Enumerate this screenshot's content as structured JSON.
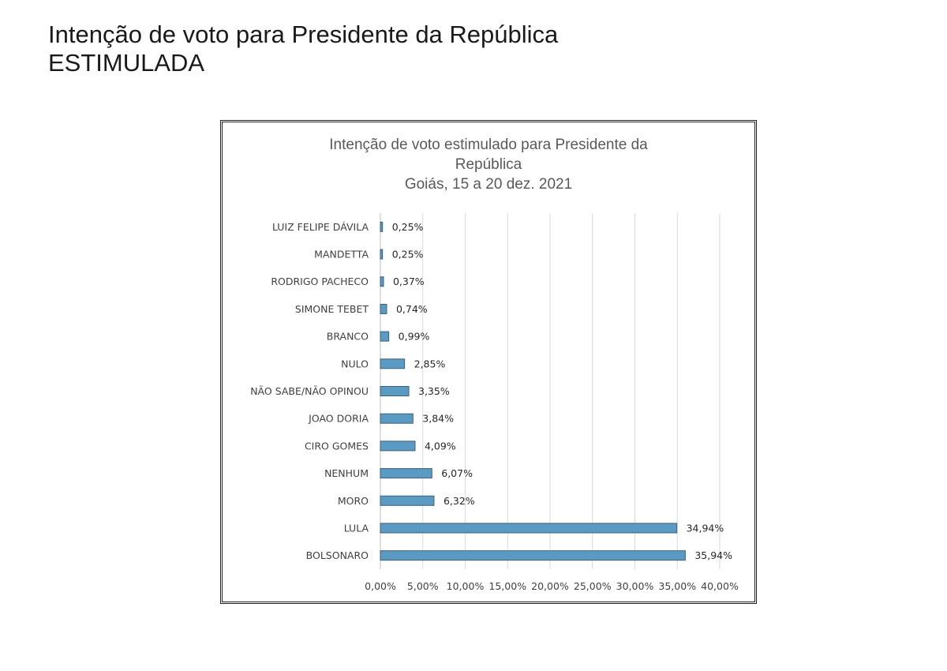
{
  "page": {
    "title_line1": "Intenção de voto para Presidente da República",
    "title_line2": "ESTIMULADA"
  },
  "chart_data": {
    "type": "bar",
    "orientation": "horizontal",
    "title_lines": [
      "Intenção de voto estimulado para Presidente da",
      "República",
      "Goiás, 15 a 20 dez. 2021"
    ],
    "categories": [
      "LUIZ FELIPE DÁVILA",
      "MANDETTA",
      "RODRIGO PACHECO",
      "SIMONE TEBET",
      "BRANCO",
      "NULO",
      "NÃO SABE/NÃO OPINOU",
      "JOAO DORIA",
      "CIRO GOMES",
      "NENHUM",
      "MORO",
      "LULA",
      "BOLSONARO"
    ],
    "values": [
      0.25,
      0.25,
      0.37,
      0.74,
      0.99,
      2.85,
      3.35,
      3.84,
      4.09,
      6.07,
      6.32,
      34.94,
      35.94
    ],
    "value_labels": [
      "0,25%",
      "0,25%",
      "0,37%",
      "0,74%",
      "0,99%",
      "2,85%",
      "3,35%",
      "3,84%",
      "4,09%",
      "6,07%",
      "6,32%",
      "34,94%",
      "35,94%"
    ],
    "x_ticks": [
      0,
      5,
      10,
      15,
      20,
      25,
      30,
      35,
      40
    ],
    "x_tick_labels": [
      "0,00%",
      "5,00%",
      "10,00%",
      "15,00%",
      "20,00%",
      "25,00%",
      "30,00%",
      "35,00%",
      "40,00%"
    ],
    "xlim": [
      0,
      40
    ],
    "grid": "vertical",
    "legend": "none",
    "bar_color": "#5b9bc3",
    "bar_edge_color": "#3d5f78"
  }
}
